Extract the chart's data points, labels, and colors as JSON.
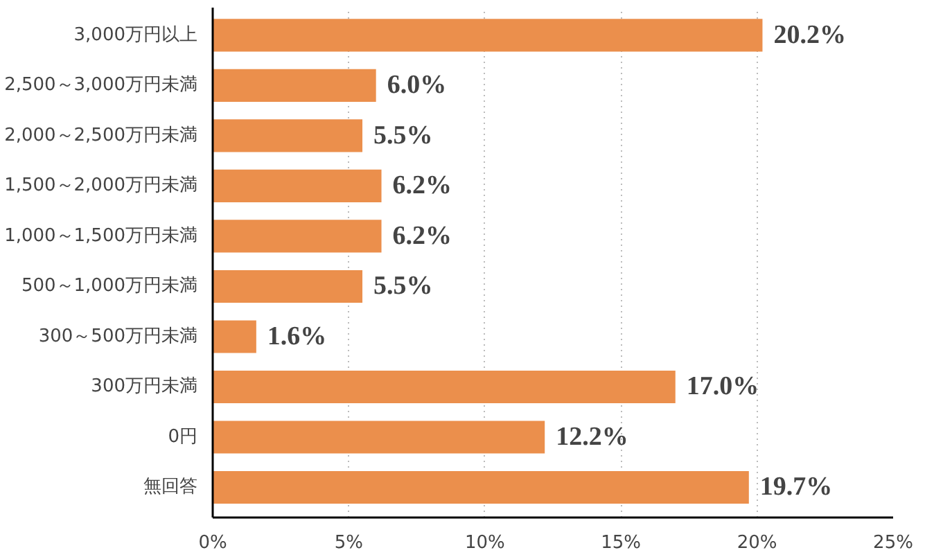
{
  "chart_data": {
    "type": "bar",
    "orientation": "horizontal",
    "categories": [
      "3,000万円以上",
      "2,500～3,000万円未満",
      "2,000～2,500万円未満",
      "1,500～2,000万円未満",
      "1,000～1,500万円未満",
      "500～1,000万円未満",
      "300～500万円未満",
      "300万円未満",
      "0円",
      "無回答"
    ],
    "values": [
      20.2,
      6.0,
      5.5,
      6.2,
      6.2,
      5.5,
      1.6,
      17.0,
      12.2,
      19.7
    ],
    "value_labels": [
      "20.2%",
      "6.0%",
      "5.5%",
      "6.2%",
      "6.2%",
      "5.5%",
      "1.6%",
      "17.0%",
      "12.2%",
      "19.7%"
    ],
    "color": "#eb8f4c",
    "xlim": [
      0,
      25
    ],
    "xticks": [
      {
        "value": 0,
        "label": "0%"
      },
      {
        "value": 5,
        "label": "5%"
      },
      {
        "value": 10,
        "label": "10%"
      },
      {
        "value": 15,
        "label": "15%"
      },
      {
        "value": 20,
        "label": "20%"
      },
      {
        "value": 25,
        "label": "25%"
      }
    ],
    "grid": "x"
  }
}
